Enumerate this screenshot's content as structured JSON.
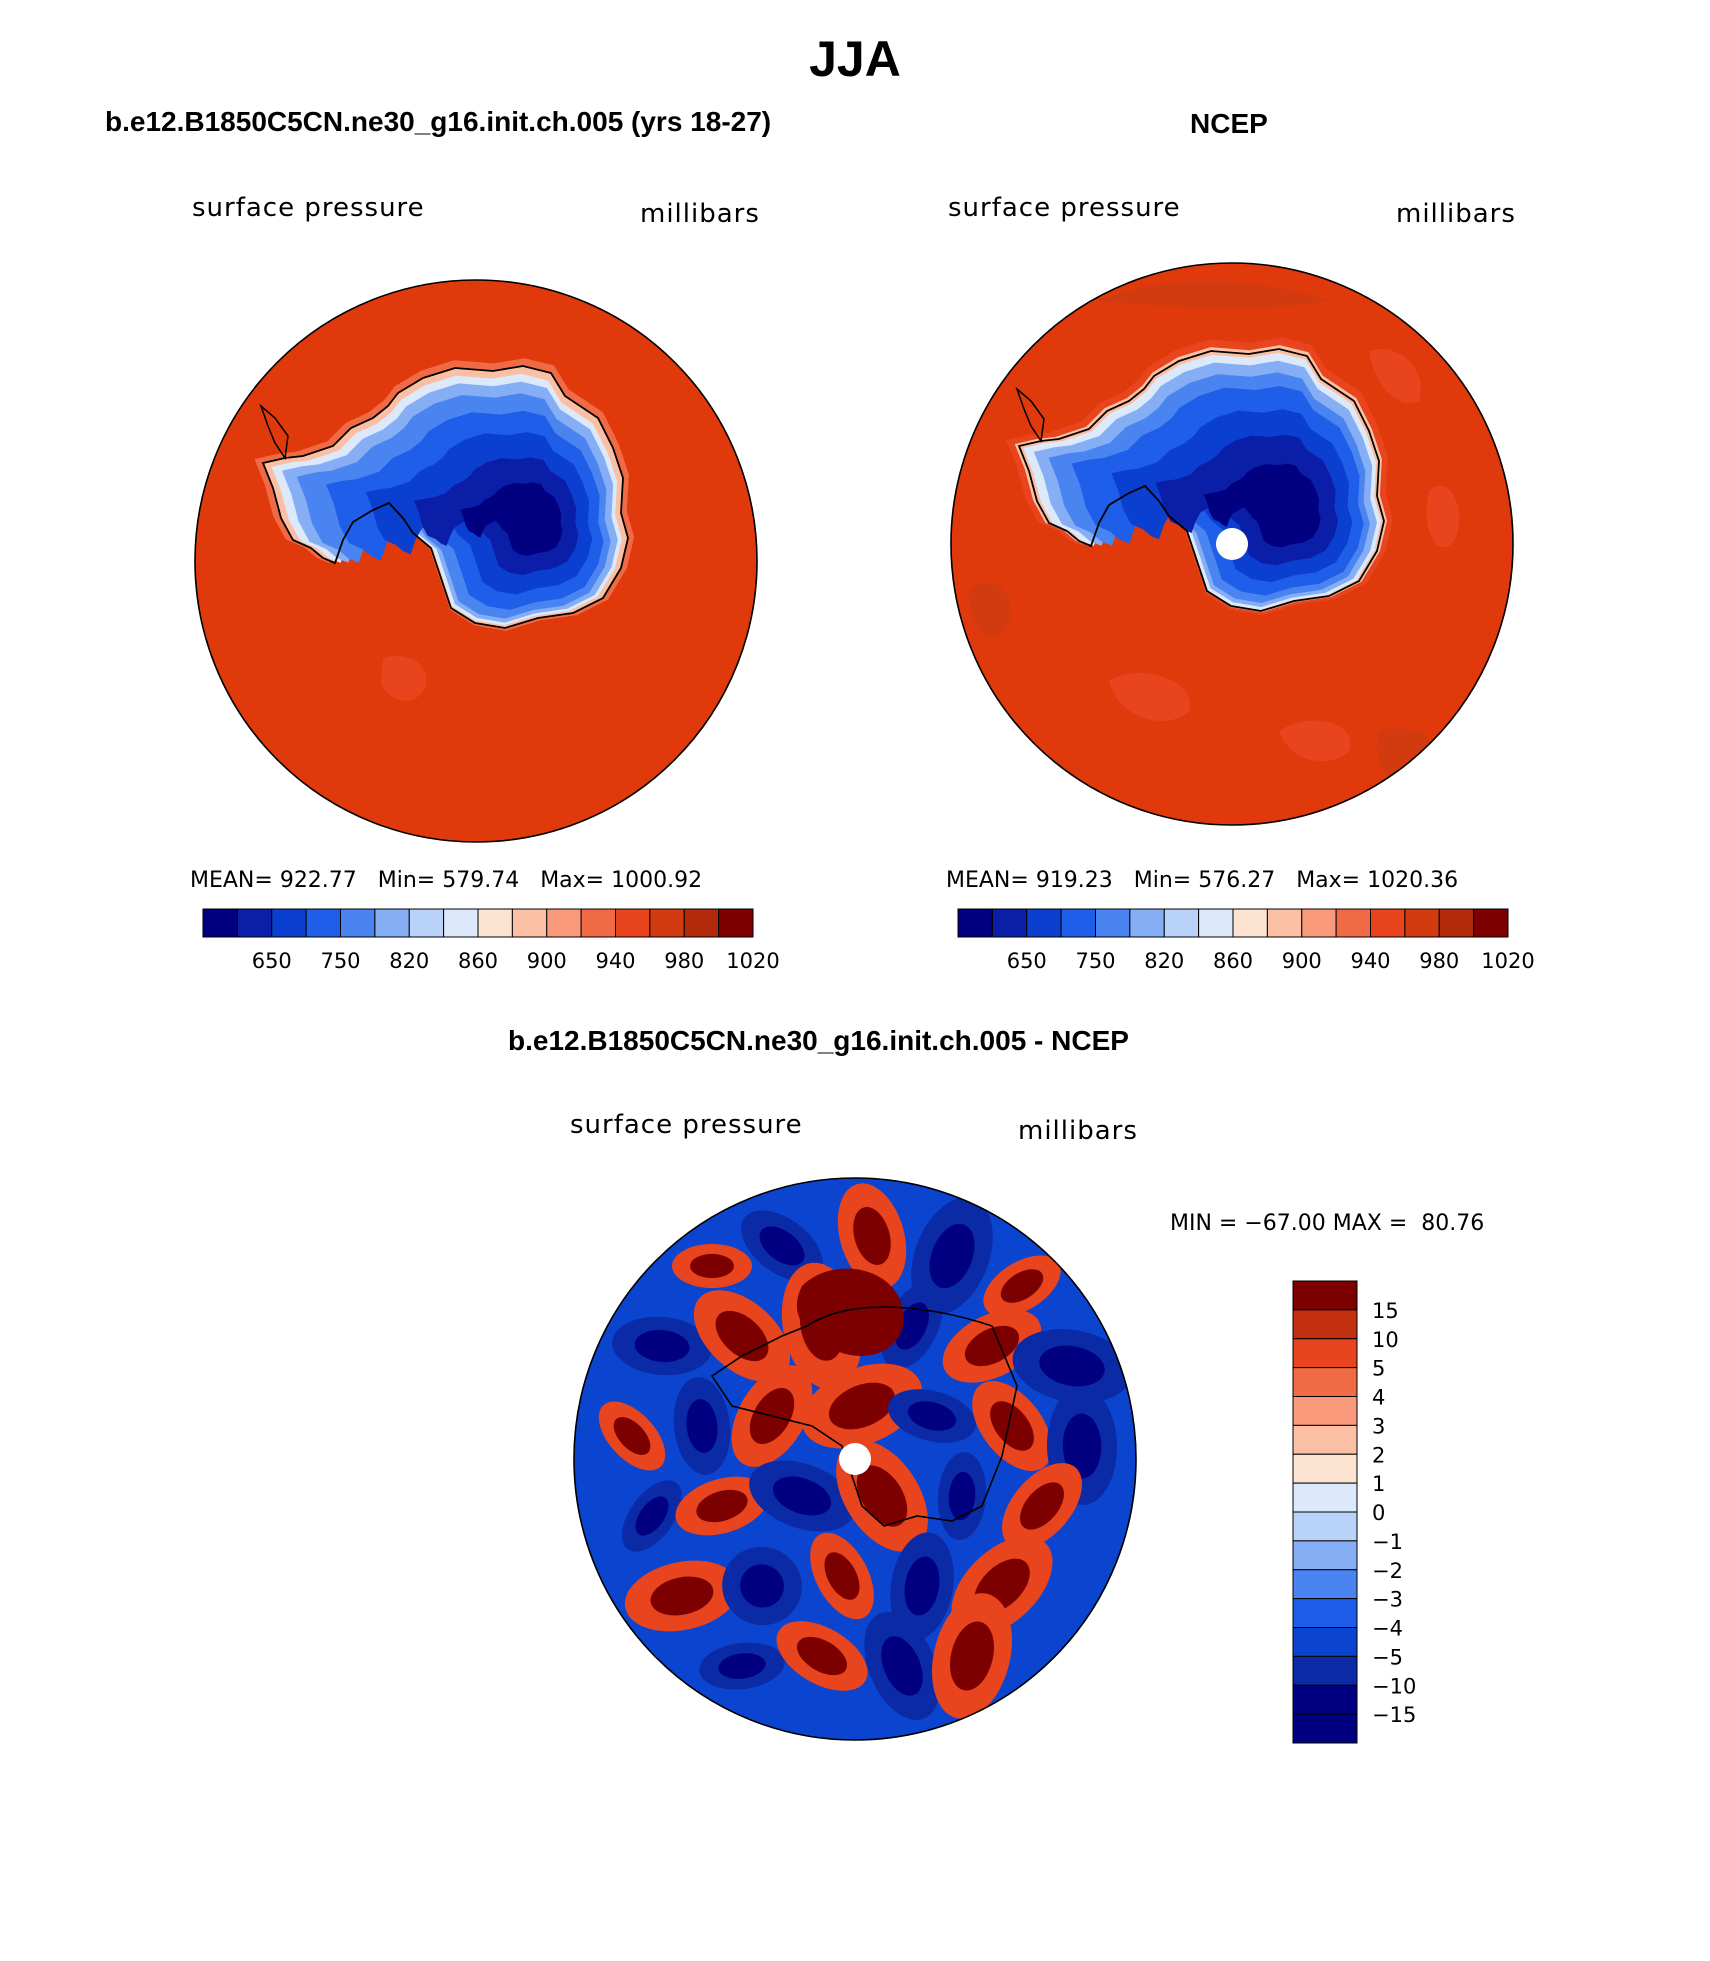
{
  "title": "JJA",
  "colors": {
    "mean_scale": [
      "#000080",
      "#0a1ea8",
      "#0b3fd0",
      "#1e5ee8",
      "#4a84f0",
      "#86aef5",
      "#b9d2f9",
      "#dbe9fb",
      "#fde3d2",
      "#fbc0a3",
      "#f7997a",
      "#f06b45",
      "#e8441d",
      "#d23a10",
      "#b22a0a",
      "#7d0000"
    ],
    "diff_scale": [
      "#000080",
      "#0b2aa6",
      "#0b45cf",
      "#1d5ce6",
      "#4a84f0",
      "#86aef5",
      "#b9d2f9",
      "#dbe9fb",
      "#fde3d2",
      "#fbc0a3",
      "#f7997a",
      "#f06b45",
      "#e8441d",
      "#c23010",
      "#7d0000"
    ],
    "ocean_model": "#e03a0c",
    "ocean_obs": "#e03a0c"
  },
  "panels": [
    {
      "title": "b.e12.B1850C5CN.ne30_g16.init.ch.005 (yrs 18-27)",
      "left_label": "surface pressure",
      "right_label": "millibars",
      "stats": "MEAN= 922.77   Min= 579.74   Max= 1000.92",
      "pole_hole": false
    },
    {
      "title": "NCEP",
      "left_label": "surface pressure",
      "right_label": "millibars",
      "stats": "MEAN= 919.23   Min= 576.27   Max= 1020.36",
      "pole_hole": true
    }
  ],
  "diff_panel": {
    "title": "b.e12.B1850C5CN.ne30_g16.init.ch.005 - NCEP",
    "left_label": "surface pressure",
    "right_label": "millibars",
    "minmax": "MIN = −67.00 MAX =  80.76"
  },
  "chart_data": [
    {
      "type": "heatmap",
      "title": "b.e12.B1850C5CN.ne30_g16.init.ch.005 (yrs 18-27)",
      "variable": "surface pressure",
      "units": "millibars",
      "mean": 922.77,
      "min": 579.74,
      "max": 1000.92,
      "levels": [
        650,
        700,
        750,
        800,
        820,
        840,
        860,
        880,
        900,
        920,
        940,
        960,
        980,
        1000,
        1020
      ],
      "tick_labels": [
        "650",
        "750",
        "820",
        "860",
        "900",
        "940",
        "980",
        "1020"
      ]
    },
    {
      "type": "heatmap",
      "title": "NCEP",
      "variable": "surface pressure",
      "units": "millibars",
      "mean": 919.23,
      "min": 576.27,
      "max": 1020.36,
      "levels": [
        650,
        700,
        750,
        800,
        820,
        840,
        860,
        880,
        900,
        920,
        940,
        960,
        980,
        1000,
        1020
      ],
      "tick_labels": [
        "650",
        "750",
        "820",
        "860",
        "900",
        "940",
        "980",
        "1020"
      ]
    },
    {
      "type": "heatmap",
      "title": "b.e12.B1850C5CN.ne30_g16.init.ch.005 - NCEP",
      "variable": "surface pressure",
      "units": "millibars",
      "min": -67.0,
      "max": 80.76,
      "levels": [
        -15,
        -10,
        -5,
        -4,
        -3,
        -2,
        -1,
        0,
        1,
        2,
        3,
        4,
        5,
        10,
        15
      ],
      "tick_labels": [
        "15",
        "10",
        "5",
        "4",
        "3",
        "2",
        "1",
        "0",
        "−1",
        "−2",
        "−3",
        "−4",
        "−5",
        "−10",
        "−15"
      ]
    }
  ]
}
